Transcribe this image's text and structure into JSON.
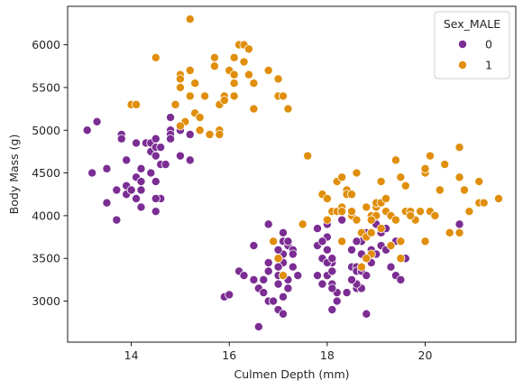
{
  "chart_data": {
    "type": "scatter",
    "title": "",
    "xlabel": "Culmen Depth (mm)",
    "ylabel": "Body Mass (g)",
    "xlim": [
      12.7,
      21.85
    ],
    "ylim": [
      2520,
      6450
    ],
    "xticks": [
      14,
      16,
      18,
      20
    ],
    "yticks": [
      3000,
      3500,
      4000,
      4500,
      5000,
      5500,
      6000
    ],
    "grid": false,
    "legend": {
      "title": "Sex_MALE",
      "placement": "top-right",
      "entries": [
        {
          "label": "0",
          "color": "#7b2d93"
        },
        {
          "label": "1",
          "color": "#e08e0b"
        }
      ]
    },
    "series": [
      {
        "name": "0",
        "color": "#7b2d93",
        "points": [
          [
            13.1,
            5000
          ],
          [
            13.3,
            5100
          ],
          [
            13.2,
            4500
          ],
          [
            13.5,
            4550
          ],
          [
            13.5,
            4150
          ],
          [
            13.7,
            3950
          ],
          [
            13.7,
            4300
          ],
          [
            13.8,
            4950
          ],
          [
            13.8,
            4900
          ],
          [
            13.9,
            4650
          ],
          [
            13.9,
            4250
          ],
          [
            13.9,
            4350
          ],
          [
            14.0,
            4300
          ],
          [
            14.1,
            4850
          ],
          [
            14.1,
            4450
          ],
          [
            14.1,
            4200
          ],
          [
            14.2,
            4400
          ],
          [
            14.2,
            4100
          ],
          [
            14.2,
            4550
          ],
          [
            14.2,
            4300
          ],
          [
            14.3,
            4850
          ],
          [
            14.4,
            4850
          ],
          [
            14.4,
            4750
          ],
          [
            14.4,
            4500
          ],
          [
            14.5,
            4800
          ],
          [
            14.5,
            4700
          ],
          [
            14.5,
            4400
          ],
          [
            14.5,
            4900
          ],
          [
            14.6,
            4200
          ],
          [
            14.6,
            4800
          ],
          [
            14.6,
            4600
          ],
          [
            14.7,
            4600
          ],
          [
            14.8,
            5000
          ],
          [
            14.8,
            4950
          ],
          [
            14.8,
            4900
          ],
          [
            14.8,
            5150
          ],
          [
            14.5,
            4200
          ],
          [
            14.5,
            4050
          ],
          [
            15.0,
            4700
          ],
          [
            15.2,
            4650
          ],
          [
            15.0,
            5000
          ],
          [
            15.2,
            4950
          ],
          [
            15.9,
            3050
          ],
          [
            16.0,
            3075
          ],
          [
            16.2,
            3350
          ],
          [
            16.3,
            3300
          ],
          [
            16.5,
            3650
          ],
          [
            16.5,
            3250
          ],
          [
            16.6,
            2700
          ],
          [
            16.6,
            3150
          ],
          [
            16.7,
            3250
          ],
          [
            16.7,
            3100
          ],
          [
            16.8,
            3000
          ],
          [
            16.8,
            3350
          ],
          [
            16.9,
            3000
          ],
          [
            17.0,
            3300
          ],
          [
            17.0,
            3200
          ],
          [
            17.1,
            3550
          ],
          [
            17.1,
            3450
          ],
          [
            17.1,
            3700
          ],
          [
            17.2,
            3250
          ],
          [
            17.2,
            3650
          ],
          [
            17.3,
            3400
          ],
          [
            17.0,
            3500
          ],
          [
            17.1,
            3800
          ],
          [
            16.8,
            3900
          ],
          [
            17.0,
            3600
          ],
          [
            17.0,
            2900
          ],
          [
            17.1,
            2850
          ],
          [
            17.2,
            3150
          ],
          [
            17.3,
            3600
          ],
          [
            17.4,
            3300
          ],
          [
            17.2,
            3700
          ],
          [
            17.3,
            3550
          ],
          [
            16.9,
            3700
          ],
          [
            17.1,
            3050
          ],
          [
            16.8,
            3450
          ],
          [
            17.0,
            3400
          ],
          [
            17.9,
            3200
          ],
          [
            17.8,
            3300
          ],
          [
            17.8,
            3650
          ],
          [
            17.8,
            3850
          ],
          [
            17.9,
            3500
          ],
          [
            18.0,
            3300
          ],
          [
            18.0,
            3600
          ],
          [
            18.0,
            3900
          ],
          [
            18.0,
            3750
          ],
          [
            18.1,
            3350
          ],
          [
            18.1,
            3200
          ],
          [
            18.1,
            3450
          ],
          [
            18.2,
            3100
          ],
          [
            18.2,
            3000
          ],
          [
            18.3,
            3950
          ],
          [
            18.0,
            3450
          ],
          [
            17.9,
            3700
          ],
          [
            18.1,
            3150
          ],
          [
            18.1,
            2900
          ],
          [
            18.4,
            3100
          ],
          [
            18.5,
            3400
          ],
          [
            18.5,
            3600
          ],
          [
            18.6,
            3150
          ],
          [
            18.6,
            3400
          ],
          [
            18.6,
            3350
          ],
          [
            18.7,
            3350
          ],
          [
            18.7,
            3550
          ],
          [
            18.7,
            3150
          ],
          [
            18.7,
            3700
          ],
          [
            18.8,
            3800
          ],
          [
            18.8,
            3300
          ],
          [
            18.6,
            3200
          ],
          [
            18.5,
            3250
          ],
          [
            18.8,
            2850
          ],
          [
            18.9,
            3600
          ],
          [
            18.9,
            3450
          ],
          [
            19.0,
            3900
          ],
          [
            19.0,
            3550
          ],
          [
            19.1,
            3800
          ],
          [
            19.1,
            3650
          ],
          [
            19.2,
            3850
          ],
          [
            19.3,
            3400
          ],
          [
            19.4,
            3300
          ],
          [
            19.5,
            3250
          ],
          [
            19.6,
            3500
          ],
          [
            19.4,
            3700
          ],
          [
            20.7,
            3900
          ],
          [
            19.2,
            3600
          ],
          [
            18.6,
            3700
          ],
          [
            18.1,
            3500
          ]
        ]
      },
      {
        "name": "1",
        "color": "#e08e0b",
        "points": [
          [
            14.0,
            5300
          ],
          [
            14.1,
            5300
          ],
          [
            14.5,
            5850
          ],
          [
            14.9,
            5300
          ],
          [
            15.0,
            5650
          ],
          [
            15.0,
            5600
          ],
          [
            15.0,
            5500
          ],
          [
            15.1,
            5100
          ],
          [
            15.2,
            5700
          ],
          [
            15.2,
            5400
          ],
          [
            15.3,
            5550
          ],
          [
            15.3,
            5200
          ],
          [
            15.4,
            5000
          ],
          [
            15.4,
            5150
          ],
          [
            15.5,
            5400
          ],
          [
            15.7,
            5850
          ],
          [
            15.7,
            5750
          ],
          [
            15.8,
            5300
          ],
          [
            15.8,
            5000
          ],
          [
            15.8,
            4950
          ],
          [
            15.9,
            5400
          ],
          [
            15.9,
            5350
          ],
          [
            16.0,
            5700
          ],
          [
            16.1,
            5650
          ],
          [
            16.1,
            5550
          ],
          [
            16.1,
            5400
          ],
          [
            16.2,
            6000
          ],
          [
            16.3,
            6000
          ],
          [
            16.3,
            5800
          ],
          [
            16.4,
            5950
          ],
          [
            16.4,
            5650
          ],
          [
            16.5,
            5550
          ],
          [
            16.5,
            5250
          ],
          [
            16.8,
            5700
          ],
          [
            17.0,
            5600
          ],
          [
            17.0,
            5400
          ],
          [
            17.2,
            5250
          ],
          [
            17.1,
            5400
          ],
          [
            15.2,
            6300
          ],
          [
            15.6,
            4950
          ],
          [
            15.0,
            5050
          ],
          [
            16.1,
            5850
          ],
          [
            16.9,
            3700
          ],
          [
            17.0,
            3500
          ],
          [
            17.5,
            3900
          ],
          [
            17.6,
            4700
          ],
          [
            17.9,
            4250
          ],
          [
            18.0,
            4200
          ],
          [
            18.0,
            3950
          ],
          [
            18.1,
            4050
          ],
          [
            18.2,
            4050
          ],
          [
            18.2,
            4400
          ],
          [
            18.3,
            4450
          ],
          [
            18.3,
            4100
          ],
          [
            18.3,
            3700
          ],
          [
            18.4,
            4300
          ],
          [
            18.4,
            4250
          ],
          [
            18.5,
            4000
          ],
          [
            18.5,
            4050
          ],
          [
            18.5,
            4250
          ],
          [
            18.6,
            4500
          ],
          [
            18.6,
            3950
          ],
          [
            18.7,
            3800
          ],
          [
            18.8,
            4100
          ],
          [
            18.8,
            3750
          ],
          [
            18.9,
            3800
          ],
          [
            18.9,
            3550
          ],
          [
            18.9,
            4000
          ],
          [
            19.0,
            4100
          ],
          [
            19.0,
            4150
          ],
          [
            19.0,
            4000
          ],
          [
            19.1,
            4400
          ],
          [
            19.1,
            4150
          ],
          [
            19.1,
            3850
          ],
          [
            19.2,
            4050
          ],
          [
            19.2,
            4200
          ],
          [
            19.3,
            4000
          ],
          [
            19.3,
            3650
          ],
          [
            19.4,
            3950
          ],
          [
            19.4,
            4650
          ],
          [
            19.5,
            4450
          ],
          [
            19.5,
            3700
          ],
          [
            19.5,
            3500
          ],
          [
            19.6,
            4050
          ],
          [
            19.6,
            4350
          ],
          [
            19.7,
            4050
          ],
          [
            19.8,
            3950
          ],
          [
            19.9,
            4050
          ],
          [
            20.0,
            4500
          ],
          [
            20.0,
            4550
          ],
          [
            20.0,
            3700
          ],
          [
            20.1,
            4700
          ],
          [
            20.1,
            4050
          ],
          [
            20.2,
            4000
          ],
          [
            20.3,
            4300
          ],
          [
            20.4,
            4600
          ],
          [
            20.5,
            3800
          ],
          [
            20.7,
            3800
          ],
          [
            20.7,
            4450
          ],
          [
            20.8,
            4300
          ],
          [
            20.9,
            4050
          ],
          [
            21.1,
            4400
          ],
          [
            21.1,
            4150
          ],
          [
            21.2,
            4150
          ],
          [
            21.5,
            4200
          ],
          [
            20.7,
            4800
          ],
          [
            19.7,
            4000
          ],
          [
            18.7,
            3400
          ],
          [
            18.8,
            3500
          ],
          [
            18.9,
            3950
          ],
          [
            17.1,
            3300
          ],
          [
            18.3,
            4050
          ]
        ]
      }
    ]
  }
}
